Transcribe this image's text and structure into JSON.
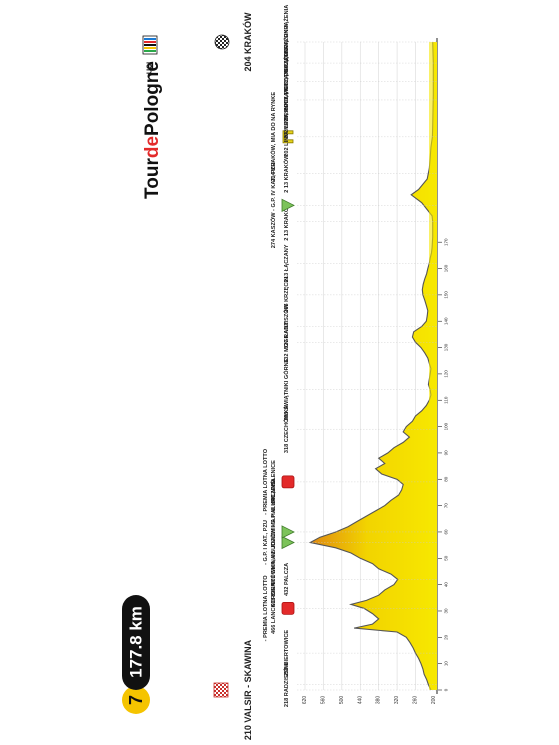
{
  "header": {
    "stage_number": "7",
    "distance": "177.8 km",
    "logo_text_1": "Tour",
    "logo_text_2": "de",
    "logo_text_3": "Pologne",
    "uci_text": "UCI"
  },
  "colors": {
    "fill_light": "#F7E800",
    "fill_dark": "#E08A10",
    "bar_yellow": "#F2D400",
    "mountain_green": "#7CC35A",
    "sprint_red": "#E32A2A",
    "feed_yellow": "#E8D51A",
    "badge_black": "#111111",
    "badge_yellow": "#F5C400"
  },
  "chart_data": {
    "type": "area",
    "title": "",
    "xlabel": "",
    "ylabel": "",
    "x_unit": "km",
    "xlim": [
      0,
      177.8
    ],
    "ylim": [
      190,
      620
    ],
    "y_ticks": [
      200,
      260,
      320,
      380,
      440,
      500,
      560,
      620
    ],
    "km_ticks": [
      0,
      10,
      20,
      30,
      40,
      50,
      60,
      70,
      80,
      90,
      100,
      110,
      120,
      130,
      140,
      150,
      160,
      170
    ],
    "x": [
      0,
      2,
      4,
      6,
      8,
      10,
      12,
      14,
      16,
      18,
      20,
      22,
      23.5,
      25,
      27,
      29,
      31,
      32.5,
      34,
      36,
      38,
      40,
      42,
      44,
      46,
      48,
      50,
      52,
      54,
      56,
      58,
      60,
      62,
      64,
      66,
      68,
      70,
      72,
      74,
      76,
      78,
      80,
      82,
      84,
      86,
      88,
      90,
      92,
      94,
      96,
      98,
      100,
      102,
      104,
      106,
      108,
      110,
      112,
      114,
      116,
      118,
      120,
      122,
      124,
      126,
      128,
      130,
      132,
      134,
      136,
      138,
      140,
      142,
      144,
      146,
      148,
      150,
      152,
      154,
      156,
      158,
      160,
      162,
      164,
      166,
      168,
      170,
      172,
      174,
      176,
      177.8
    ],
    "elevation": [
      210,
      218,
      224,
      232,
      236,
      242,
      250,
      260,
      268,
      278,
      290,
      320,
      460,
      400,
      380,
      400,
      428,
      470,
      420,
      380,
      360,
      330,
      318,
      340,
      380,
      400,
      440,
      470,
      520,
      603,
      571,
      520,
      480,
      450,
      420,
      390,
      360,
      340,
      315,
      305,
      300,
      320,
      370,
      390,
      360,
      380,
      350,
      330,
      300,
      280,
      300,
      290,
      270,
      260,
      240,
      225,
      215,
      210,
      212,
      218,
      215,
      212,
      210,
      215,
      220,
      230,
      242,
      260,
      270,
      266,
      240,
      225,
      222,
      220,
      225,
      230,
      236,
      238,
      235,
      230,
      224,
      220,
      215,
      212,
      208,
      206,
      205,
      204,
      204,
      204,
      204
    ],
    "waypoints": [
      {
        "km": 0,
        "name": "210 VALSIR - SKAWINA",
        "icon": "start"
      },
      {
        "km": 2,
        "name": "218 RADZISZÓW",
        "icon": "none"
      },
      {
        "km": 14,
        "name": "250 BIERTOWICE",
        "icon": "none"
      },
      {
        "km": 31,
        "name": "466 LANCKORONA",
        "sub": "- PREMIA LOTNA LOTTO",
        "icon": "sprint"
      },
      {
        "km": 42,
        "name": "432 PALCZA",
        "icon": "none"
      },
      {
        "km": 56,
        "name": "603 BIENKÓWKA, IM. JOACHIMA HALUPCZOKA",
        "sub": "- G.P. I KAT., PZU",
        "icon": "mountain"
      },
      {
        "km": 60,
        "name": "571 GMINA BUDZÓW - G.P. III KAT., PZU",
        "icon": "mountain"
      },
      {
        "km": 79,
        "name": "301 MYŚLENICE",
        "sub": "- PREMIA LOTNA LOTTO",
        "icon": "sprint"
      },
      {
        "km": 99,
        "name": "318 CZECHÓWKA",
        "icon": "none"
      },
      {
        "km": 114,
        "name": "395 ŚWIĄTNIKI GÓRNE",
        "icon": "none"
      },
      {
        "km": 132,
        "name": "332 MOGILANY",
        "icon": "none"
      },
      {
        "km": 138,
        "name": "327 RADZISZÓW",
        "icon": "none"
      },
      {
        "km": 150,
        "name": "266 KRZĘCIN",
        "icon": "none"
      },
      {
        "km": 162,
        "name": "213 ŁĄCZANY",
        "icon": "none"
      },
      {
        "km": 177.8,
        "name": "2 13 KRAKÓW",
        "icon": "none"
      },
      {
        "km": 184,
        "name": "274 KASZÓW - G.P. IV KAT., PZU",
        "icon": "mountain"
      },
      {
        "km": 196,
        "name": "2 13 KRAKÓW",
        "icon": "none"
      },
      {
        "km": 210,
        "name": "204 KRAKÓW, MIA DO NA RYNKE",
        "icon": "feed"
      },
      {
        "km": 224,
        "name": "202 LINIA METY, POCZĄTEK I OKRĄŻENIA",
        "icon": "none"
      },
      {
        "km": 231,
        "name": "202 LINIA METY, POCZĄTEK II OKRĄŻENIA",
        "icon": "none"
      },
      {
        "km": 238,
        "name": "202 LINIA METY, POCZĄTEK III OKRĄŻENIA",
        "icon": "none"
      },
      {
        "km": 246,
        "name": "204 KRAKÓW",
        "icon": "finish"
      }
    ]
  }
}
